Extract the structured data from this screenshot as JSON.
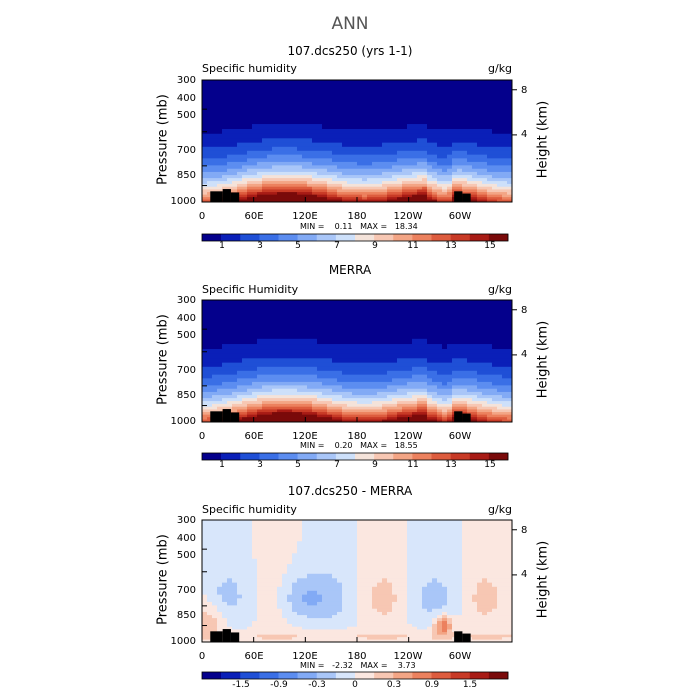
{
  "page": {
    "title": "ANN"
  },
  "chart_data": [
    {
      "type": "heatmap",
      "title": "107.dcs250 (yrs 1-1)",
      "variable": "Specific humidity",
      "units": "g/kg",
      "ylabel": "Pressure (mb)",
      "ylabel_right": "Height (km)",
      "yticks": [
        "300",
        "400",
        "500",
        "700",
        "850",
        "1000"
      ],
      "ytick_values": [
        300,
        400,
        500,
        700,
        850,
        1000
      ],
      "yticks_right": [
        "8",
        "4"
      ],
      "xticks": [
        "0",
        "60E",
        "120E",
        "180",
        "120W",
        "60W"
      ],
      "xtick_values": [
        0,
        60,
        120,
        180,
        240,
        300
      ],
      "minmax_text": "MIN =    0.11   MAX =   18.34",
      "min": 0.11,
      "max": 18.34,
      "colorbar_labels": [
        "1",
        "3",
        "5",
        "7",
        "9",
        "11",
        "13",
        "15"
      ],
      "colorbar_levels": 16,
      "palette": "blue-red",
      "ylim": [
        300,
        1000
      ],
      "xlim": [
        0,
        360
      ]
    },
    {
      "type": "heatmap",
      "title": "MERRA",
      "variable": "Specific Humidity",
      "units": "g/kg",
      "ylabel": "Pressure (mb)",
      "ylabel_right": "Height (km)",
      "yticks": [
        "300",
        "400",
        "500",
        "700",
        "850",
        "1000"
      ],
      "ytick_values": [
        300,
        400,
        500,
        700,
        850,
        1000
      ],
      "yticks_right": [
        "8",
        "4"
      ],
      "xticks": [
        "0",
        "60E",
        "120E",
        "180",
        "120W",
        "60W"
      ],
      "xtick_values": [
        0,
        60,
        120,
        180,
        240,
        300
      ],
      "minmax_text": "MIN =    0.20   MAX =   18.55",
      "min": 0.2,
      "max": 18.55,
      "colorbar_labels": [
        "1",
        "3",
        "5",
        "7",
        "9",
        "11",
        "13",
        "15"
      ],
      "colorbar_levels": 16,
      "palette": "blue-red",
      "ylim": [
        300,
        1000
      ],
      "xlim": [
        0,
        360
      ]
    },
    {
      "type": "heatmap",
      "title": "107.dcs250 - MERRA",
      "variable": "Specific humidity",
      "units": "g/kg",
      "ylabel": "Pressure (mb)",
      "ylabel_right": "Height (km)",
      "yticks": [
        "300",
        "400",
        "500",
        "700",
        "850",
        "1000"
      ],
      "ytick_values": [
        300,
        400,
        500,
        700,
        850,
        1000
      ],
      "yticks_right": [
        "8",
        "4"
      ],
      "xticks": [
        "0",
        "60E",
        "120E",
        "180",
        "120W",
        "60W"
      ],
      "xtick_values": [
        0,
        60,
        120,
        180,
        240,
        300
      ],
      "minmax_text": "MIN =   -2.32   MAX =    3.73",
      "min": -2.32,
      "max": 3.73,
      "colorbar_labels": [
        "-1.5",
        "-0.9",
        "-0.3",
        "0",
        "0.3",
        "0.9",
        "1.5"
      ],
      "colorbar_levels": 16,
      "palette": "diverging",
      "ylim": [
        300,
        1000
      ],
      "xlim": [
        0,
        360
      ]
    }
  ]
}
